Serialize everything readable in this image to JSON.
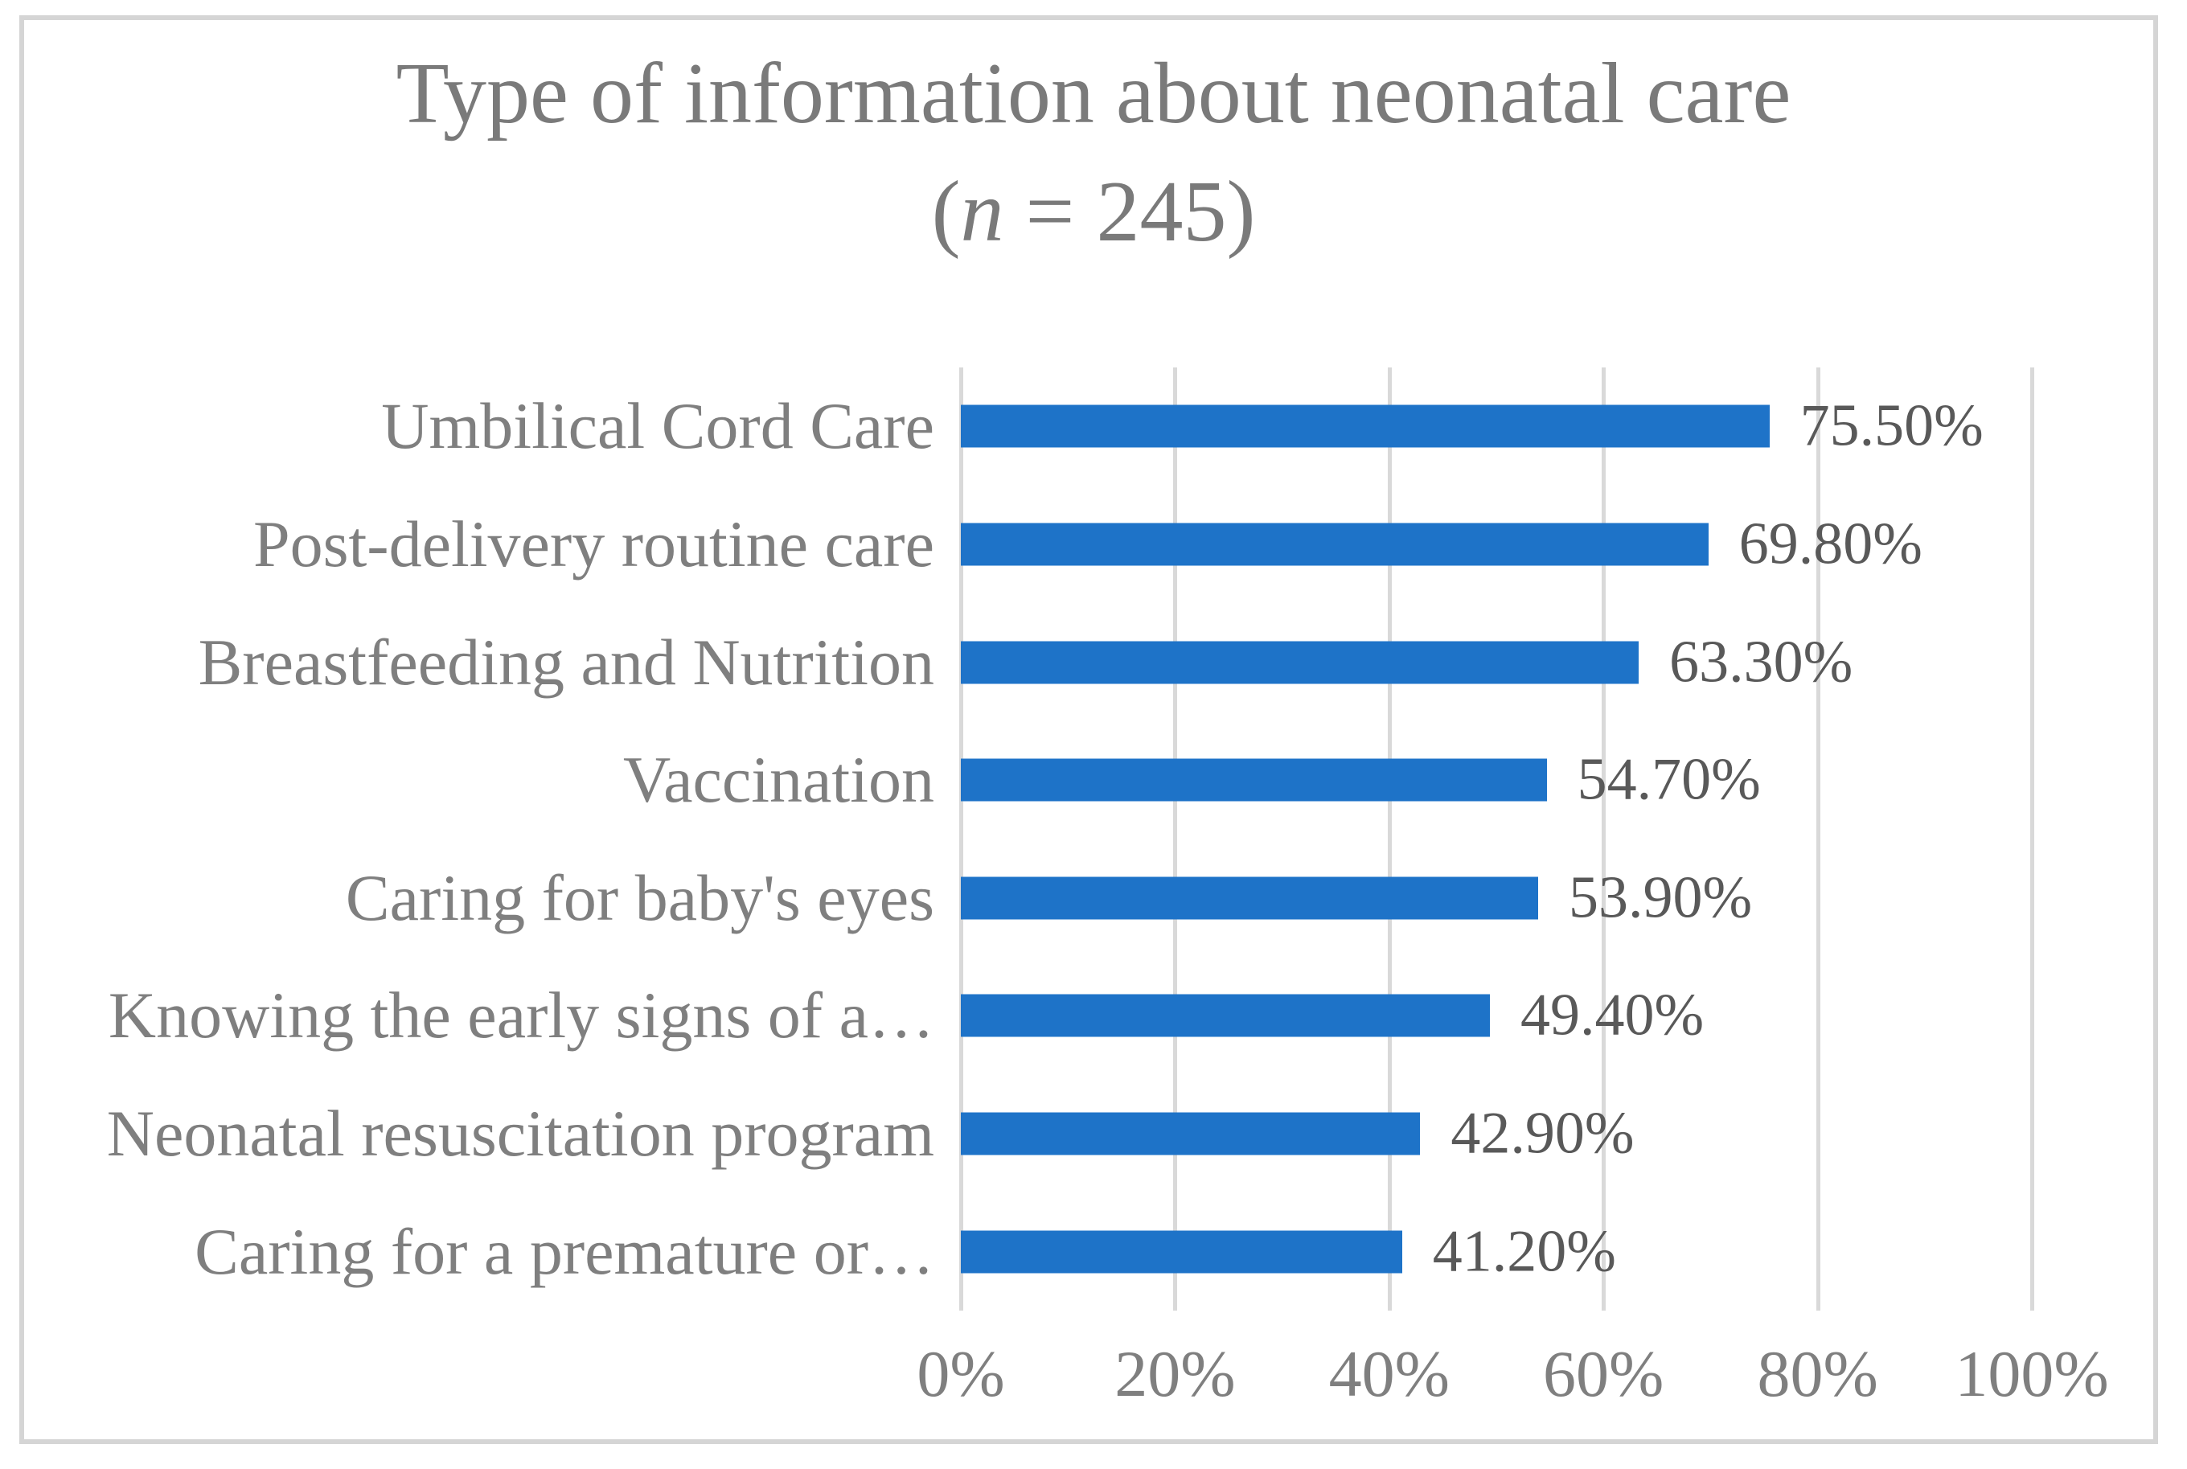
{
  "title": {
    "line1": "Type of information about neonatal care",
    "line2_open": "(",
    "line2_var": "n",
    "line2_rest": " = 245)"
  },
  "chart_data": {
    "type": "bar",
    "orientation": "horizontal",
    "title": "Type of information about neonatal care (n = 245)",
    "sample_size_label": "n = 245",
    "categories": [
      "Umbilical Cord Care",
      "Post-delivery routine care",
      "Breastfeeding and Nutrition",
      "Vaccination",
      "Caring for baby's eyes",
      "Knowing the early signs of a…",
      "Neonatal resuscitation program",
      "Caring for a premature or…"
    ],
    "values": [
      75.5,
      69.8,
      63.3,
      54.7,
      53.9,
      49.4,
      42.9,
      41.2
    ],
    "value_labels": [
      "75.50%",
      "69.80%",
      "63.30%",
      "54.70%",
      "53.90%",
      "49.40%",
      "42.90%",
      "41.20%"
    ],
    "x_ticks": [
      {
        "value": 0,
        "label": "0%"
      },
      {
        "value": 20,
        "label": "20%"
      },
      {
        "value": 40,
        "label": "40%"
      },
      {
        "value": 60,
        "label": "60%"
      },
      {
        "value": 80,
        "label": "80%"
      },
      {
        "value": 100,
        "label": "100%"
      }
    ],
    "xlim": [
      0,
      100
    ],
    "grid": true,
    "legend": false,
    "colors": {
      "bar": "#1e73c8",
      "gridline": "#d9d9d9",
      "category_label": "#7f7f7f",
      "tick_label": "#7f7f7f",
      "value_label": "#595959",
      "title": "#7a7a7a",
      "figure_border": "#d5d5d5",
      "background": "#ffffff"
    }
  }
}
